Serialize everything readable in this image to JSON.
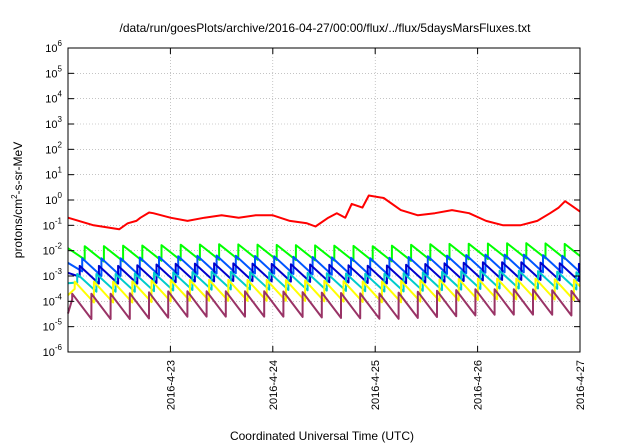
{
  "chart_data": {
    "type": "line",
    "title": "/data/run/goesPlots/archive/2016-04-27/00:00/flux/../flux/5daysMarsFluxes.txt",
    "xlabel": "Coordinated Universal Time (UTC)",
    "ylabel": {
      "base": "protons/cm",
      "sup": "2",
      "rest": "-s-sr-MeV"
    },
    "yscale": "log",
    "ylim": [
      1e-06,
      1000000.0
    ],
    "y_ticks": [
      {
        "exp": "-6",
        "value": 1e-06
      },
      {
        "exp": "-5",
        "value": 1e-05
      },
      {
        "exp": "-4",
        "value": 0.0001
      },
      {
        "exp": "-3",
        "value": 0.001
      },
      {
        "exp": "-2",
        "value": 0.01
      },
      {
        "exp": "-1",
        "value": 0.1
      },
      {
        "exp": "0",
        "value": 1
      },
      {
        "exp": "1",
        "value": 10.0
      },
      {
        "exp": "2",
        "value": 100.0
      },
      {
        "exp": "3",
        "value": 1000.0
      },
      {
        "exp": "4",
        "value": 10000.0
      },
      {
        "exp": "5",
        "value": 100000.0
      },
      {
        "exp": "6",
        "value": 1000000.0
      }
    ],
    "y_tick_base": "10",
    "xlim": [
      "2016-04-22T00:00",
      "2016-04-27T00:00"
    ],
    "x_ticks": [
      {
        "label": "2016-4-23",
        "value": "2016-04-23T00:00"
      },
      {
        "label": "2016-4-24",
        "value": "2016-04-24T00:00"
      },
      {
        "label": "2016-4-25",
        "value": "2016-04-25T00:00"
      },
      {
        "label": "2016-4-26",
        "value": "2016-04-26T00:00"
      },
      {
        "label": "2016-4-27",
        "value": "2016-04-27T00:00"
      }
    ],
    "grid": true,
    "legend": "none",
    "series": [
      {
        "color": "#ff0000",
        "x": [
          "2016-04-22T00:00",
          "2016-04-22T06:00",
          "2016-04-22T12:00",
          "2016-04-22T14:00",
          "2016-04-22T16:00",
          "2016-04-22T17:00",
          "2016-04-22T19:00",
          "2016-04-22T20:00",
          "2016-04-23T00:00",
          "2016-04-23T04:00",
          "2016-04-23T08:00",
          "2016-04-23T12:00",
          "2016-04-23T16:00",
          "2016-04-23T20:00",
          "2016-04-24T00:00",
          "2016-04-24T04:00",
          "2016-04-24T08:00",
          "2016-04-24T10:00",
          "2016-04-24T13:00",
          "2016-04-24T15:00",
          "2016-04-24T17:00",
          "2016-04-24T18:30",
          "2016-04-24T21:00",
          "2016-04-24T22:30",
          "2016-04-25T02:00",
          "2016-04-25T06:00",
          "2016-04-25T10:00",
          "2016-04-25T14:00",
          "2016-04-25T18:00",
          "2016-04-25T22:00",
          "2016-04-26T02:00",
          "2016-04-26T06:00",
          "2016-04-26T10:00",
          "2016-04-26T14:00",
          "2016-04-26T17:00",
          "2016-04-26T19:00",
          "2016-04-26T20:30",
          "2016-04-26T22:00",
          "2016-04-27T00:00"
        ],
        "y": [
          0.2,
          0.1,
          0.07,
          0.12,
          0.15,
          0.2,
          0.32,
          0.3,
          0.2,
          0.15,
          0.2,
          0.25,
          0.2,
          0.25,
          0.25,
          0.15,
          0.12,
          0.09,
          0.2,
          0.3,
          0.2,
          0.7,
          0.5,
          1.5,
          1.2,
          0.4,
          0.25,
          0.3,
          0.4,
          0.3,
          0.15,
          0.1,
          0.1,
          0.15,
          0.3,
          0.5,
          0.9,
          0.6,
          0.35
        ]
      },
      {
        "color": "#00ff00",
        "x": [
          "2016-04-22T00:00",
          "2016-04-22T07:00",
          "2016-04-22T14:00",
          "2016-04-22T18:00",
          "2016-04-23T00:00",
          "2016-04-23T12:00",
          "2016-04-24T00:00",
          "2016-04-24T12:00",
          "2016-04-25T00:00",
          "2016-04-25T12:00",
          "2016-04-26T00:00",
          "2016-04-26T12:00",
          "2016-04-27T00:00"
        ],
        "y": [
          0.015,
          0.015,
          0.016,
          0.016,
          0.017,
          0.018,
          0.017,
          0.016,
          0.015,
          0.018,
          0.019,
          0.02,
          0.018
        ]
      },
      {
        "color": "#0055ff",
        "x": [
          "2016-04-22T00:00",
          "2016-04-22T12:00",
          "2016-04-23T00:00",
          "2016-04-23T12:00",
          "2016-04-24T00:00",
          "2016-04-24T12:00",
          "2016-04-25T00:00",
          "2016-04-25T12:00",
          "2016-04-26T00:00",
          "2016-04-26T12:00",
          "2016-04-27T00:00"
        ],
        "y": [
          0.005,
          0.005,
          0.006,
          0.0065,
          0.006,
          0.0055,
          0.005,
          0.006,
          0.007,
          0.007,
          0.006
        ]
      },
      {
        "color": "#0000cc",
        "x": [
          "2016-04-22T00:00",
          "2016-04-22T12:00",
          "2016-04-23T00:00",
          "2016-04-23T12:00",
          "2016-04-24T00:00",
          "2016-04-24T12:00",
          "2016-04-25T00:00",
          "2016-04-25T12:00",
          "2016-04-26T00:00",
          "2016-04-26T12:00",
          "2016-04-27T00:00"
        ],
        "y": [
          0.0025,
          0.0025,
          0.003,
          0.0032,
          0.003,
          0.0028,
          0.0025,
          0.003,
          0.0035,
          0.0035,
          0.003
        ]
      },
      {
        "color": "#00cccc",
        "x": [
          "2016-04-22T00:00",
          "2016-04-22T12:00",
          "2016-04-23T00:00",
          "2016-04-23T12:00",
          "2016-04-24T00:00",
          "2016-04-24T12:00",
          "2016-04-25T00:00",
          "2016-04-25T12:00",
          "2016-04-26T00:00",
          "2016-04-26T12:00",
          "2016-04-27T00:00"
        ],
        "y": [
          0.0012,
          0.0012,
          0.0014,
          0.0015,
          0.0014,
          0.0013,
          0.0012,
          0.0014,
          0.0016,
          0.0016,
          0.0014
        ]
      },
      {
        "color": "#ffff00",
        "x": [
          "2016-04-22T00:00",
          "2016-04-22T12:00",
          "2016-04-23T00:00",
          "2016-04-23T12:00",
          "2016-04-24T00:00",
          "2016-04-24T12:00",
          "2016-04-25T00:00",
          "2016-04-25T12:00",
          "2016-04-26T00:00",
          "2016-04-26T12:00",
          "2016-04-27T00:00"
        ],
        "y": [
          0.0006,
          0.0006,
          0.0007,
          0.0007,
          0.0007,
          0.00065,
          0.0006,
          0.0007,
          0.0008,
          0.0008,
          0.0007
        ]
      },
      {
        "color": "#993366",
        "x": [
          "2016-04-22T00:00",
          "2016-04-22T12:00",
          "2016-04-23T00:00",
          "2016-04-23T12:00",
          "2016-04-24T00:00",
          "2016-04-24T12:00",
          "2016-04-25T00:00",
          "2016-04-25T12:00",
          "2016-04-26T00:00",
          "2016-04-26T12:00",
          "2016-04-27T00:00"
        ],
        "y": [
          0.0002,
          0.0002,
          0.00025,
          0.00025,
          0.00025,
          0.00022,
          0.0002,
          0.00025,
          0.0003,
          0.0003,
          0.00025
        ]
      }
    ],
    "sawtooth_minimum_factor": {
      "#00ff00": 0.25,
      "#0055ff": 0.2,
      "#0000cc": 0.2,
      "#00cccc": 0.2,
      "#ffff00": 0.15,
      "#993366": 0.1
    },
    "sawtooth_period_hours": 4.5
  }
}
